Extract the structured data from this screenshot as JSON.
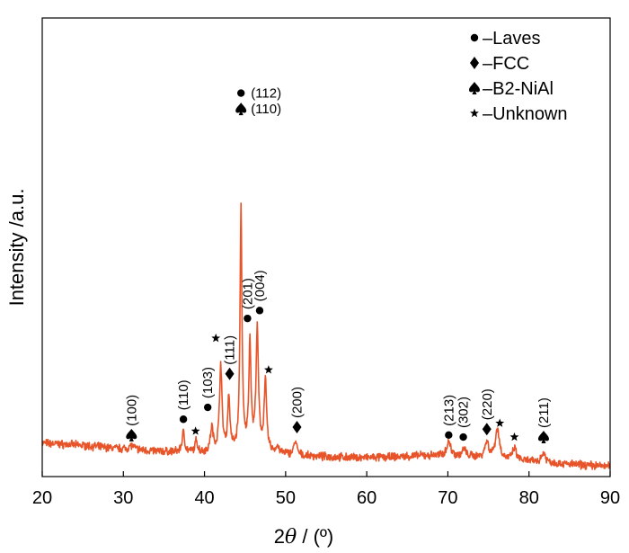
{
  "chart_data": {
    "type": "line",
    "xlabel_prefix": "2",
    "xlabel_symbol": "θ",
    "xlabel_suffix": " / (º)",
    "ylabel": "Intensity /a.u.",
    "xlim": [
      20,
      90
    ],
    "ylim": [
      -0.4,
      11.2
    ],
    "x_ticks": [
      "20",
      "30",
      "40",
      "50",
      "60",
      "70",
      "80",
      "90"
    ],
    "grid": false,
    "line_color": "#E8542A",
    "baseline": [
      [
        20,
        0.45
      ],
      [
        22,
        0.42
      ],
      [
        24,
        0.4
      ],
      [
        26,
        0.37
      ],
      [
        28,
        0.33
      ],
      [
        30,
        0.3
      ],
      [
        32,
        0.27
      ],
      [
        34,
        0.24
      ],
      [
        36,
        0.22
      ],
      [
        38,
        0.2
      ],
      [
        40,
        0.2
      ],
      [
        42,
        0.22
      ],
      [
        44,
        0.24
      ],
      [
        46,
        0.24
      ],
      [
        48,
        0.2
      ],
      [
        50,
        0.16
      ],
      [
        52,
        0.12
      ],
      [
        55,
        0.1
      ],
      [
        58,
        0.08
      ],
      [
        61,
        0.08
      ],
      [
        64,
        0.1
      ],
      [
        67,
        0.13
      ],
      [
        70,
        0.13
      ],
      [
        73,
        0.1
      ],
      [
        76,
        0.05
      ],
      [
        79,
        0.0
      ],
      [
        82,
        -0.05
      ],
      [
        86,
        -0.1
      ],
      [
        90,
        -0.14
      ]
    ],
    "peaks": [
      {
        "x": 31.0,
        "h": 0.1,
        "w": 0.35
      },
      {
        "x": 37.4,
        "h": 0.5,
        "w": 0.2
      },
      {
        "x": 39.0,
        "h": 0.3,
        "w": 0.18
      },
      {
        "x": 40.9,
        "h": 0.6,
        "w": 0.2
      },
      {
        "x": 42.0,
        "h": 2.2,
        "w": 0.18
      },
      {
        "x": 43.0,
        "h": 1.35,
        "w": 0.16
      },
      {
        "x": 44.5,
        "h": 6.15,
        "w": 0.14
      },
      {
        "x": 45.6,
        "h": 2.7,
        "w": 0.16
      },
      {
        "x": 46.5,
        "h": 3.0,
        "w": 0.18
      },
      {
        "x": 47.5,
        "h": 1.75,
        "w": 0.18
      },
      {
        "x": 49.0,
        "h": 0.15,
        "w": 0.2
      },
      {
        "x": 51.2,
        "h": 0.35,
        "w": 0.22
      },
      {
        "x": 70.1,
        "h": 0.35,
        "w": 0.3
      },
      {
        "x": 72.0,
        "h": 0.18,
        "w": 0.25
      },
      {
        "x": 74.8,
        "h": 0.4,
        "w": 0.28
      },
      {
        "x": 76.1,
        "h": 0.75,
        "w": 0.3
      },
      {
        "x": 78.2,
        "h": 0.3,
        "w": 0.25
      },
      {
        "x": 81.8,
        "h": 0.25,
        "w": 0.3
      }
    ],
    "legend": {
      "placement": "top-right",
      "entries": [
        {
          "marker": "circle",
          "label": "–Laves"
        },
        {
          "marker": "diamond",
          "label": "–FCC"
        },
        {
          "marker": "spade",
          "label": "–B2-NiAl"
        },
        {
          "marker": "star",
          "label": "–Unknown"
        }
      ]
    },
    "annotations": [
      {
        "x": 31.0,
        "y": 0.65,
        "marker": "spade",
        "label": "(100)",
        "vertical": true
      },
      {
        "x": 37.4,
        "y": 1.05,
        "marker": "circle",
        "label": "(110)",
        "vertical": true
      },
      {
        "x": 38.9,
        "y": 0.75,
        "marker": "star",
        "label": "",
        "vertical": false
      },
      {
        "x": 40.4,
        "y": 1.35,
        "marker": "circle",
        "label": "(103)",
        "vertical": true
      },
      {
        "x": 41.4,
        "y": 3.1,
        "marker": "star",
        "label": "",
        "vertical": false
      },
      {
        "x": 43.1,
        "y": 2.2,
        "marker": "diamond",
        "label": "(111)",
        "vertical": true
      },
      {
        "x": 44.5,
        "y": 9.3,
        "marker": "circle",
        "label": "(112)",
        "vertical": false
      },
      {
        "x": 44.5,
        "y": 8.9,
        "marker": "spade",
        "label": "(110)",
        "vertical": false
      },
      {
        "x": 45.3,
        "y": 3.6,
        "marker": "circle",
        "label": "(201)",
        "vertical": true
      },
      {
        "x": 46.8,
        "y": 3.8,
        "marker": "circle",
        "label": "(004)",
        "vertical": true
      },
      {
        "x": 47.9,
        "y": 2.3,
        "marker": "star",
        "label": "",
        "vertical": false
      },
      {
        "x": 51.4,
        "y": 0.85,
        "marker": "diamond",
        "label": "(200)",
        "vertical": true
      },
      {
        "x": 70.1,
        "y": 0.65,
        "marker": "circle",
        "label": "(213)",
        "vertical": true
      },
      {
        "x": 71.9,
        "y": 0.6,
        "marker": "circle",
        "label": "(302)",
        "vertical": true
      },
      {
        "x": 74.8,
        "y": 0.8,
        "marker": "diamond",
        "label": "(220)",
        "vertical": true
      },
      {
        "x": 76.4,
        "y": 0.95,
        "marker": "star",
        "label": "",
        "vertical": false
      },
      {
        "x": 78.2,
        "y": 0.6,
        "marker": "star",
        "label": "",
        "vertical": false
      },
      {
        "x": 81.8,
        "y": 0.6,
        "marker": "spade",
        "label": "(211)",
        "vertical": true
      }
    ]
  }
}
